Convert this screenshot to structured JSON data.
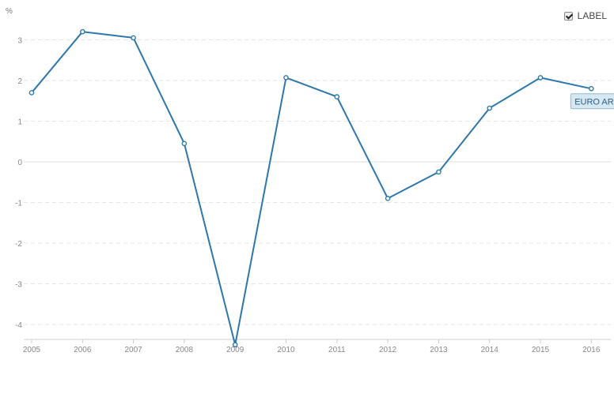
{
  "header": {
    "unit": "%",
    "label_toggle": {
      "text": "LABEL",
      "checked": true
    }
  },
  "colors": {
    "series": "#2e77aa",
    "grid": "#e6e6e6",
    "axis_text": "#888888",
    "badge_bg": "#d8e8f2",
    "badge_border": "#8fb7d2"
  },
  "chart_data": {
    "type": "line",
    "title": "",
    "xlabel": "",
    "ylabel": "%",
    "x": [
      "2005",
      "2006",
      "2007",
      "2008",
      "2009",
      "2010",
      "2011",
      "2012",
      "2013",
      "2014",
      "2015",
      "2016"
    ],
    "series": [
      {
        "name": "EURO AREA",
        "values": [
          1.7,
          3.2,
          3.05,
          0.45,
          -4.5,
          2.07,
          1.6,
          -0.9,
          -0.25,
          1.32,
          2.07,
          1.8
        ]
      }
    ],
    "yticks": [
      -4,
      -3,
      -2,
      -1,
      0,
      1,
      2,
      3
    ],
    "ylim": [
      -4.5,
      3.6
    ],
    "grid": true,
    "legend": "none",
    "series_label_position": "end"
  }
}
